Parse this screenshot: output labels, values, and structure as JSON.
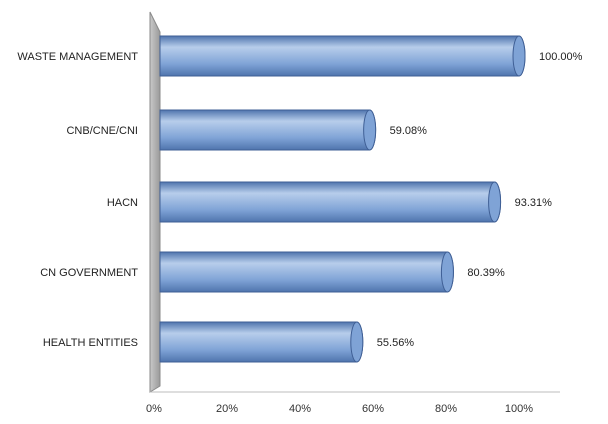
{
  "chart_data": {
    "type": "bar",
    "orientation": "horizontal",
    "style": "3d-cylinder",
    "categories": [
      "WASTE MANAGEMENT",
      "CNB/CNE/CNI",
      "HACN",
      "CN GOVERNMENT",
      "HEALTH ENTITIES"
    ],
    "values": [
      100.0,
      59.08,
      93.31,
      80.39,
      55.56
    ],
    "data_labels": [
      "100.00%",
      "59.08%",
      "93.31%",
      "80.39%",
      "55.56%"
    ],
    "xlim": [
      0,
      100
    ],
    "x_ticks": [
      "0%",
      "20%",
      "40%",
      "60%",
      "80%",
      "100%"
    ],
    "title": "",
    "xlabel": "",
    "ylabel": "",
    "grid": false,
    "legend": "none",
    "colors": {
      "bar_fill": "#7fa3d6",
      "bar_highlight": "#b7cdeb",
      "bar_shadow": "#4f74ad",
      "bar_stroke": "#3f5f95",
      "wall": "#a7a7a7",
      "text": "#222222"
    }
  }
}
